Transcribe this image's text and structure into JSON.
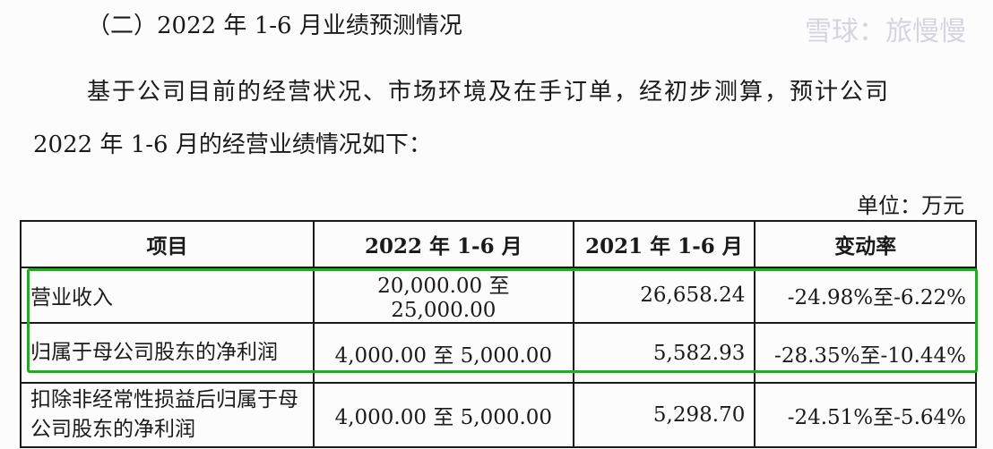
{
  "section_title": "（二）2022 年 1-6 月业绩预测情况",
  "paragraph": [
    "基于公司目前的经营状况、市场环境及在手订单，经初步测算，预计公司",
    "2022 年 1-6 月的经营业绩情况如下："
  ],
  "unit": "单位：万元",
  "table": {
    "headers": [
      "项目",
      "2022 年 1-6 月",
      "2021 年 1-6 月",
      "变动率"
    ],
    "rows": [
      [
        "营业收入",
        "20,000.00 至 25,000.00",
        "26,658.24",
        "-24.98%至-6.22%"
      ],
      [
        "归属于母公司股东的净利润",
        "4,000.00 至 5,000.00",
        "5,582.93",
        "-28.35%至-10.44%"
      ],
      [
        "扣除非经常性损益后归属于母公司股东的净利润",
        "4,000.00 至 5,000.00",
        "5,298.70",
        "-24.51%至-5.64%"
      ]
    ]
  },
  "highlight_color": "#2aa52a",
  "watermark": "雪球：旅慢慢"
}
